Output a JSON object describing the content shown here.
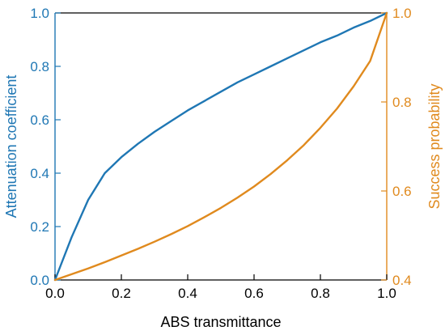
{
  "chart_data": {
    "type": "line",
    "title": "",
    "xlabel": "ABS transmittance",
    "ylabel_left": "Attenuation coefficient",
    "ylabel_right": "Success probability",
    "xlim": [
      0.0,
      1.0
    ],
    "ylim_left": [
      0.0,
      1.0
    ],
    "ylim_right": [
      0.4,
      1.0
    ],
    "x_ticks": [
      "0.0",
      "0.2",
      "0.4",
      "0.6",
      "0.8",
      "1.0"
    ],
    "y_left_ticks": [
      "0.0",
      "0.2",
      "0.4",
      "0.6",
      "0.8",
      "1.0"
    ],
    "y_right_ticks": [
      "0.4",
      "0.6",
      "0.8",
      "1.0"
    ],
    "grid": false,
    "legend": "none",
    "series": [
      {
        "axis": "left",
        "color": "#1f77b4",
        "x": [
          0.0,
          0.05,
          0.1,
          0.15,
          0.2,
          0.25,
          0.3,
          0.35,
          0.4,
          0.45,
          0.5,
          0.55,
          0.6,
          0.65,
          0.7,
          0.75,
          0.8,
          0.85,
          0.9,
          0.95,
          1.0
        ],
        "y": [
          0.0,
          0.16,
          0.3,
          0.4,
          0.46,
          0.51,
          0.555,
          0.595,
          0.635,
          0.67,
          0.705,
          0.74,
          0.77,
          0.8,
          0.83,
          0.86,
          0.89,
          0.915,
          0.945,
          0.97,
          1.0
        ]
      },
      {
        "axis": "right",
        "color": "#e08a1e",
        "x": [
          0.0,
          0.05,
          0.1,
          0.15,
          0.2,
          0.25,
          0.3,
          0.35,
          0.4,
          0.45,
          0.5,
          0.55,
          0.6,
          0.65,
          0.7,
          0.75,
          0.8,
          0.85,
          0.9,
          0.95,
          1.0
        ],
        "y": [
          0.4,
          0.413,
          0.426,
          0.44,
          0.455,
          0.47,
          0.486,
          0.503,
          0.521,
          0.541,
          0.562,
          0.585,
          0.61,
          0.638,
          0.669,
          0.703,
          0.742,
          0.785,
          0.835,
          0.892,
          1.0
        ]
      }
    ]
  }
}
